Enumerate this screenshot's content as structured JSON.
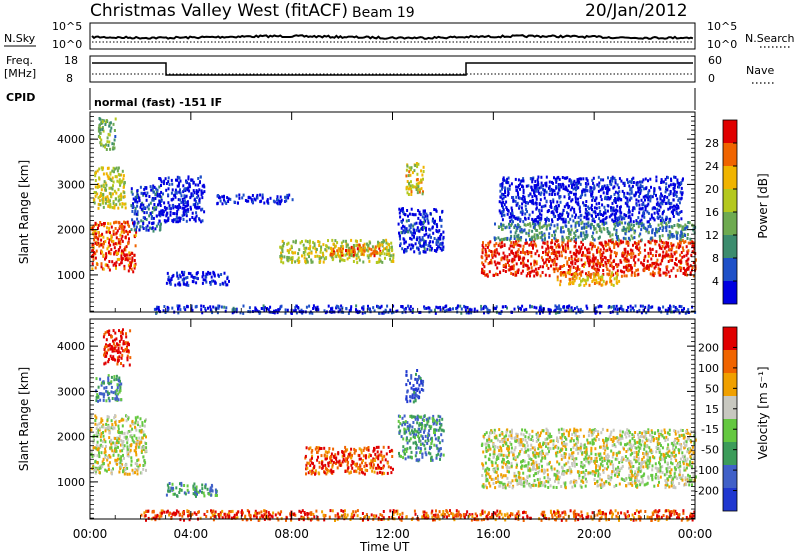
{
  "header": {
    "station": "Christmas Valley West (fitACF)",
    "beam": "Beam 19",
    "date": "20/Jan/2012"
  },
  "summary_panels": {
    "nsky_label": "N.Sky",
    "nsearch_label": "N.Search",
    "nsky_ticks": [
      "10^5",
      "10^0"
    ],
    "nsearch_ticks": [
      "10^5",
      "10^0"
    ],
    "freq_label_1": "Freq.",
    "freq_label_2": "[MHz]",
    "freq_ticks": [
      "18",
      "8"
    ],
    "nave_label": "Nave",
    "nave_ticks": [
      "60",
      "0"
    ],
    "cpid_label": "CPID",
    "cpid_text": "normal (fast) -151 IF"
  },
  "chart_data": [
    {
      "type": "heatmap",
      "title": "",
      "xlabel": "Time UT",
      "ylabel": "Slant Range [km]",
      "x_ticks": [
        "00:00",
        "04:00",
        "08:00",
        "12:00",
        "16:00",
        "20:00",
        "00:00"
      ],
      "xlim_hours": [
        0,
        24
      ],
      "ylim_km": [
        180,
        4600
      ],
      "y_ticks": [
        1000,
        2000,
        3000,
        4000
      ],
      "colorbar": {
        "label": "Power [dB]",
        "ticks": [
          "28",
          "24",
          "20",
          "16",
          "12",
          "8",
          "4"
        ],
        "colors": [
          "#0000e0",
          "#1e50c8",
          "#3c8c6e",
          "#6eaa50",
          "#b4c81e",
          "#f0b400",
          "#f06400",
          "#e00000"
        ]
      },
      "regions": [
        {
          "t0": 0.0,
          "t1": 1.8,
          "r0": 1100,
          "r1": 2200,
          "level": 0.85
        },
        {
          "t0": 1.6,
          "t1": 2.8,
          "r0": 2000,
          "r1": 3000,
          "level": 0.15
        },
        {
          "t0": 0.1,
          "t1": 1.4,
          "r0": 2500,
          "r1": 3400,
          "level": 0.55
        },
        {
          "t0": 0.3,
          "t1": 1.0,
          "r0": 3800,
          "r1": 4500,
          "level": 0.4
        },
        {
          "t0": 2.7,
          "t1": 4.5,
          "r0": 2200,
          "r1": 3200,
          "level": 0.05
        },
        {
          "t0": 3.0,
          "t1": 5.5,
          "r0": 800,
          "r1": 1100,
          "level": 0.05
        },
        {
          "t0": 5.0,
          "t1": 8.0,
          "r0": 2600,
          "r1": 2800,
          "level": 0.05
        },
        {
          "t0": 7.5,
          "t1": 12.0,
          "r0": 1300,
          "r1": 1800,
          "level": 0.55
        },
        {
          "t0": 9.5,
          "t1": 11.5,
          "r0": 1450,
          "r1": 1700,
          "level": 0.8
        },
        {
          "t0": 12.5,
          "t1": 13.2,
          "r0": 2800,
          "r1": 3500,
          "level": 0.6
        },
        {
          "t0": 12.2,
          "t1": 14.0,
          "r0": 1500,
          "r1": 2500,
          "level": 0.1
        },
        {
          "t0": 15.5,
          "t1": 24.0,
          "r0": 1000,
          "r1": 1800,
          "level": 0.92
        },
        {
          "t0": 16.0,
          "t1": 24.0,
          "r0": 1800,
          "r1": 2200,
          "level": 0.3
        },
        {
          "t0": 16.2,
          "t1": 23.5,
          "r0": 2200,
          "r1": 3200,
          "level": 0.05
        },
        {
          "t0": 18.5,
          "t1": 21.0,
          "r0": 800,
          "r1": 1100,
          "level": 0.7
        },
        {
          "t0": 2.5,
          "t1": 24.0,
          "r0": 180,
          "r1": 350,
          "level": 0.1
        }
      ]
    },
    {
      "type": "heatmap",
      "title": "",
      "xlabel": "Time UT",
      "ylabel": "Slant Range [km]",
      "x_ticks": [
        "00:00",
        "04:00",
        "08:00",
        "12:00",
        "16:00",
        "20:00",
        "00:00"
      ],
      "xlim_hours": [
        0,
        24
      ],
      "ylim_km": [
        180,
        4600
      ],
      "y_ticks": [
        1000,
        2000,
        3000,
        4000
      ],
      "colorbar": {
        "label": "Velocity [m s⁻¹]",
        "ticks": [
          "200",
          "100",
          "50",
          "15",
          "-15",
          "-50",
          "-100",
          "-200"
        ],
        "colors": [
          "#2038d0",
          "#4060c8",
          "#3c9c5a",
          "#64c840",
          "#c8c8c0",
          "#f0a000",
          "#f06400",
          "#e00000"
        ]
      },
      "regions": [
        {
          "t0": 0.0,
          "t1": 2.2,
          "r0": 1200,
          "r1": 2500,
          "level": 0.55
        },
        {
          "t0": 0.5,
          "t1": 1.6,
          "r0": 3600,
          "r1": 4400,
          "level": 0.95
        },
        {
          "t0": 0.2,
          "t1": 1.2,
          "r0": 2800,
          "r1": 3400,
          "level": 0.3
        },
        {
          "t0": 3.0,
          "t1": 5.0,
          "r0": 700,
          "r1": 1000,
          "level": 0.3
        },
        {
          "t0": 8.5,
          "t1": 12.0,
          "r0": 1200,
          "r1": 1800,
          "level": 0.85
        },
        {
          "t0": 12.5,
          "t1": 13.2,
          "r0": 2800,
          "r1": 3500,
          "level": 0.1
        },
        {
          "t0": 12.2,
          "t1": 14.0,
          "r0": 1500,
          "r1": 2500,
          "level": 0.3
        },
        {
          "t0": 15.5,
          "t1": 24.0,
          "r0": 900,
          "r1": 2200,
          "level": 0.55
        },
        {
          "t0": 2.0,
          "t1": 24.0,
          "r0": 180,
          "r1": 400,
          "level": 0.85
        }
      ]
    }
  ]
}
